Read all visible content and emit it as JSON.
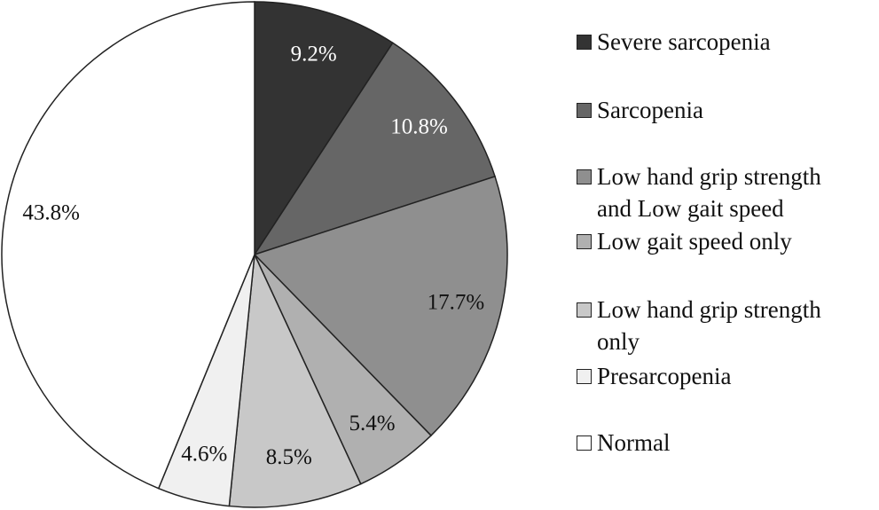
{
  "chart_data": {
    "type": "pie",
    "categories": [
      "Severe sarcopenia",
      "Sarcopenia",
      "Low hand grip strength and Low gait speed",
      "Low gait speed only",
      "Low hand grip strength only",
      "Presarcopenia",
      "Normal"
    ],
    "values": [
      9.2,
      10.8,
      17.7,
      5.4,
      8.5,
      4.6,
      43.8
    ],
    "value_labels": [
      "9.2%",
      "10.8%",
      "17.7%",
      "5.4%",
      "8.5%",
      "4.6%",
      "43.8%"
    ],
    "colors": [
      "#333333",
      "#666666",
      "#8f8f8f",
      "#b0b0b0",
      "#c8c8c8",
      "#f0f0f0",
      "#ffffff"
    ]
  }
}
